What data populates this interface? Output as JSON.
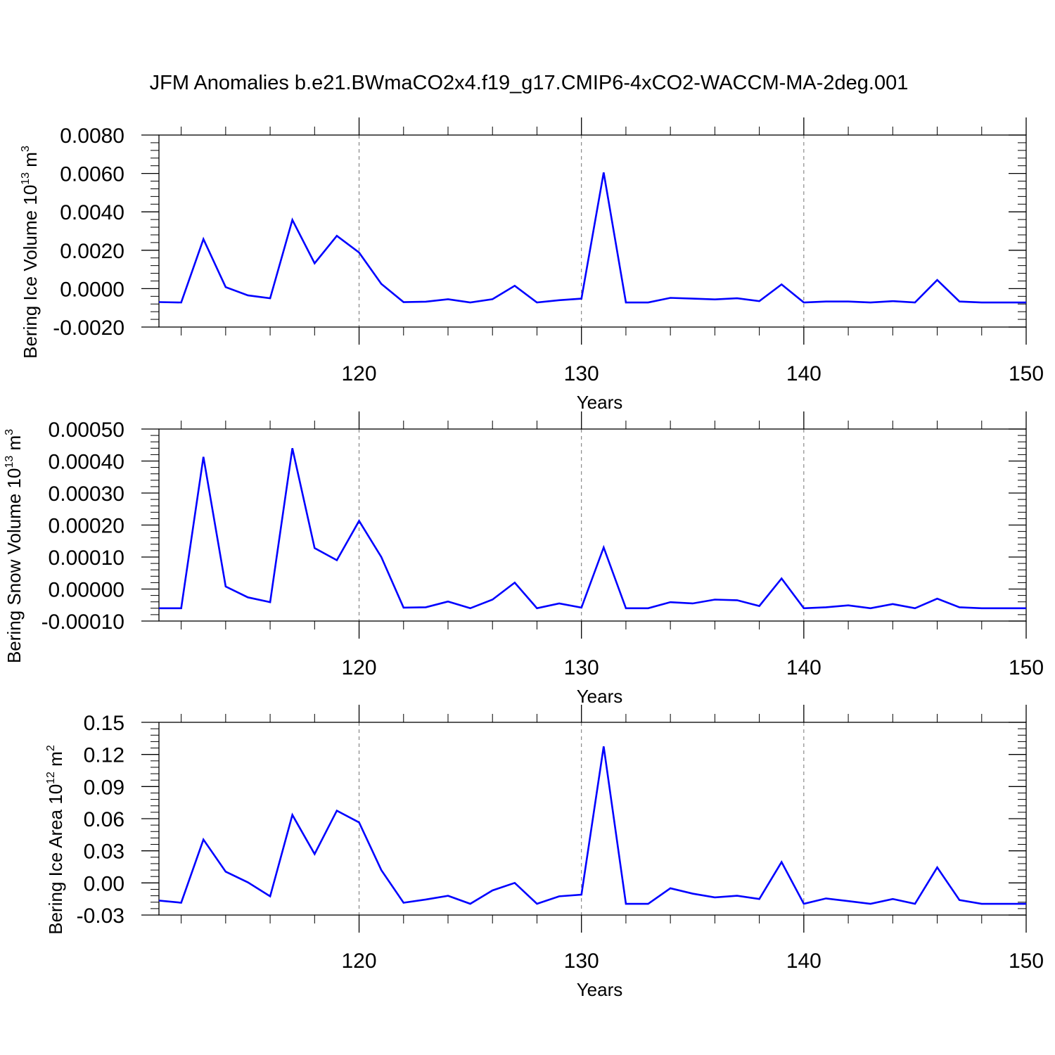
{
  "title": "JFM Anomalies b.e21.BWmaCO2x4.f19_g17.CMIP6-4xCO2-WACCM-MA-2deg.001",
  "colors": {
    "line": "#0000ff",
    "axis": "#000000",
    "grid": "#000000"
  },
  "chart_data": [
    {
      "type": "line",
      "ylabel": {
        "text": "Bering Ice Volume 10",
        "sup1": "13",
        "mid": " m",
        "sup2": "3"
      },
      "xlabel": "Years",
      "xlim": [
        111,
        150
      ],
      "ylim": [
        -0.002,
        0.008
      ],
      "yticks": [
        -0.002,
        0.0,
        0.002,
        0.004,
        0.006,
        0.008
      ],
      "ytick_labels": [
        "-0.0020",
        "0.0000",
        "0.0020",
        "0.0040",
        "0.0060",
        "0.0080"
      ],
      "xticks": [
        120,
        130,
        140,
        150
      ],
      "xtick_labels": [
        "120",
        "130",
        "140",
        "150"
      ],
      "gridlines_x": [
        120,
        130,
        140
      ],
      "x": [
        111,
        112,
        113,
        114,
        115,
        116,
        117,
        118,
        119,
        120,
        121,
        122,
        123,
        124,
        125,
        126,
        127,
        128,
        129,
        130,
        131,
        132,
        133,
        134,
        135,
        136,
        137,
        138,
        139,
        140,
        141,
        142,
        143,
        144,
        145,
        146,
        147,
        148,
        149,
        150
      ],
      "series": [
        {
          "values": [
            -0.0007,
            -0.00072,
            0.00258,
            8e-05,
            -0.00035,
            -0.0005,
            0.00358,
            0.00132,
            0.00275,
            0.00188,
            0.00025,
            -0.0007,
            -0.00068,
            -0.00055,
            -0.00072,
            -0.00055,
            0.00015,
            -0.00072,
            -0.0006,
            -0.00052,
            0.00605,
            -0.00072,
            -0.00072,
            -0.00048,
            -0.00052,
            -0.00056,
            -0.0005,
            -0.00065,
            0.00022,
            -0.00072,
            -0.00067,
            -0.00067,
            -0.00072,
            -0.00065,
            -0.00072,
            0.00045,
            -0.00067,
            -0.00072,
            -0.00072,
            -0.00072
          ]
        }
      ]
    },
    {
      "type": "line",
      "ylabel": {
        "text": "Bering Snow Volume 10",
        "sup1": "13",
        "mid": " m",
        "sup2": "3"
      },
      "xlabel": "Years",
      "xlim": [
        111,
        150
      ],
      "ylim": [
        -0.0001,
        0.0005
      ],
      "yticks": [
        -0.0001,
        0.0,
        0.0001,
        0.0002,
        0.0003,
        0.0004,
        0.0005
      ],
      "ytick_labels": [
        "-0.00010",
        "0.00000",
        "0.00010",
        "0.00020",
        "0.00030",
        "0.00040",
        "0.00050"
      ],
      "xticks": [
        120,
        130,
        140,
        150
      ],
      "xtick_labels": [
        "120",
        "130",
        "140",
        "150"
      ],
      "gridlines_x": [
        120,
        130,
        140
      ],
      "x": [
        111,
        112,
        113,
        114,
        115,
        116,
        117,
        118,
        119,
        120,
        121,
        122,
        123,
        124,
        125,
        126,
        127,
        128,
        129,
        130,
        131,
        132,
        133,
        134,
        135,
        136,
        137,
        138,
        139,
        140,
        141,
        142,
        143,
        144,
        145,
        146,
        147,
        148,
        149,
        150
      ],
      "series": [
        {
          "values": [
            -6e-05,
            -6e-05,
            0.000413,
            8e-06,
            -2.6e-05,
            -4.1e-05,
            0.00044,
            0.000128,
            9e-05,
            0.000213,
            0.0001,
            -5.8e-05,
            -5.7e-05,
            -3.9e-05,
            -6e-05,
            -3.3e-05,
            2e-05,
            -6e-05,
            -4.5e-05,
            -5.8e-05,
            0.00013,
            -6e-05,
            -6e-05,
            -4.1e-05,
            -4.5e-05,
            -3.3e-05,
            -3.5e-05,
            -5.3e-05,
            3.3e-05,
            -6e-05,
            -5.7e-05,
            -5.1e-05,
            -6e-05,
            -4.7e-05,
            -6e-05,
            -3e-05,
            -5.7e-05,
            -6e-05,
            -6e-05,
            -6e-05
          ]
        }
      ]
    },
    {
      "type": "line",
      "ylabel": {
        "text": "Bering Ice Area 10",
        "sup1": "12",
        "mid": " m",
        "sup2": "2"
      },
      "xlabel": "Years",
      "xlim": [
        111,
        150
      ],
      "ylim": [
        -0.03,
        0.15
      ],
      "yticks": [
        -0.03,
        0.0,
        0.03,
        0.06,
        0.09,
        0.12,
        0.15
      ],
      "ytick_labels": [
        "-0.03",
        "0.00",
        "0.03",
        "0.06",
        "0.09",
        "0.12",
        "0.15"
      ],
      "xticks": [
        120,
        130,
        140,
        150
      ],
      "xtick_labels": [
        "120",
        "130",
        "140",
        "150"
      ],
      "gridlines_x": [
        120,
        130,
        140
      ],
      "x": [
        111,
        112,
        113,
        114,
        115,
        116,
        117,
        118,
        119,
        120,
        121,
        122,
        123,
        124,
        125,
        126,
        127,
        128,
        129,
        130,
        131,
        132,
        133,
        134,
        135,
        136,
        137,
        138,
        139,
        140,
        141,
        142,
        143,
        144,
        145,
        146,
        147,
        148,
        149,
        150
      ],
      "series": [
        {
          "values": [
            -0.0165,
            -0.0185,
            0.0405,
            0.0105,
            0.0005,
            -0.0125,
            0.0635,
            0.027,
            0.0675,
            0.0565,
            0.012,
            -0.0185,
            -0.0155,
            -0.012,
            -0.0195,
            -0.007,
            0.0,
            -0.0195,
            -0.0125,
            -0.011,
            0.1275,
            -0.0195,
            -0.0195,
            -0.005,
            -0.01,
            -0.0135,
            -0.012,
            -0.015,
            0.0195,
            -0.0195,
            -0.0145,
            -0.017,
            -0.0195,
            -0.015,
            -0.0195,
            0.0145,
            -0.016,
            -0.0195,
            -0.0195,
            -0.0195
          ]
        }
      ]
    }
  ]
}
